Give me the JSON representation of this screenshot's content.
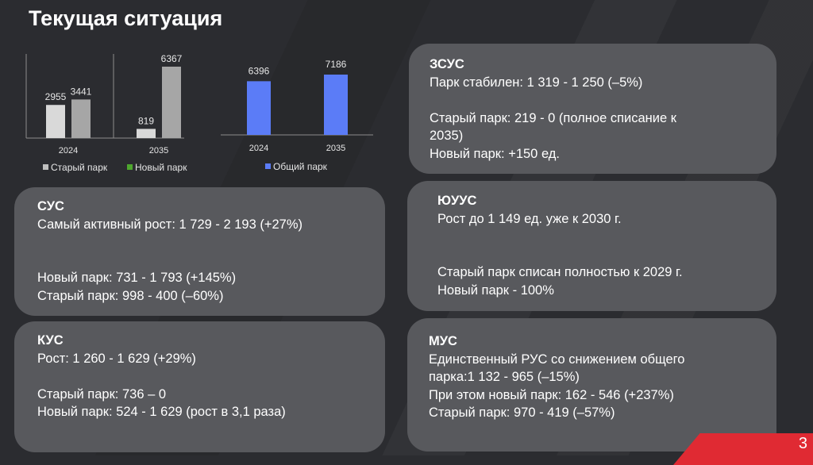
{
  "header": {
    "title": "Текущая ситуация"
  },
  "chart_data": [
    {
      "type": "bar",
      "categories": [
        "2024",
        "2035"
      ],
      "series": [
        {
          "name": "Старый парк",
          "values": [
            2955,
            819
          ],
          "color": "#d9d9d9"
        },
        {
          "name": "Новый парк",
          "values": [
            3441,
            6367
          ],
          "color": "#a6a6a6"
        }
      ],
      "legend_colors": [
        "#bfbfbf",
        "#4ea72e"
      ],
      "ylim": [
        0,
        7000
      ],
      "grid": false,
      "legend_placement": "bottom"
    },
    {
      "type": "bar",
      "categories": [
        "2024",
        "2035"
      ],
      "series": [
        {
          "name": "Общий парк",
          "values": [
            6396,
            7186
          ],
          "color": "#5b7cf7"
        }
      ],
      "ylim": [
        0,
        7500
      ],
      "grid": false,
      "legend_placement": "bottom"
    }
  ],
  "cards": {
    "sus": {
      "title": "СУС",
      "line1": "Самый активный рост: 1 729 - 2 193 (+27%)",
      "line2": "Новый парк: 731 - 1 793 (+145%)",
      "line3": "Старый парк: 998 - 400 (–60%)"
    },
    "kus": {
      "title": "КУС",
      "line1": "Рост: 1 260  - 1 629 (+29%)",
      "line2": "Старый парк: 736 – 0",
      "line3": "Новый парк: 524 - 1 629 (рост в 3,1 раза)"
    },
    "zsus": {
      "title": "ЗСУС",
      "line1": "Парк стабилен: 1 319  -  1 250 (–5%)",
      "line2": "Старый парк: 219 - 0 (полное списание к",
      "line3": "2035)",
      "line4": "Новый парк: +150 ед."
    },
    "yuus": {
      "title": "ЮУУС",
      "line1": "Рост до 1 149 ед. уже к 2030 г.",
      "line2": "Старый парк списан полностью к 2029 г.",
      "line3": "Новый парк - 100%"
    },
    "mus": {
      "title": "МУС",
      "line1": "Единственный РУС со снижением общего",
      "line2": "парка:1 132 - 965 (–15%)",
      "line3": "При этом новый парк: 162 - 546 (+237%)",
      "line4": "Старый парк: 970 - 419 (–57%)"
    }
  },
  "footer": {
    "slide_number": "3",
    "accent_color": "#e02a33"
  }
}
